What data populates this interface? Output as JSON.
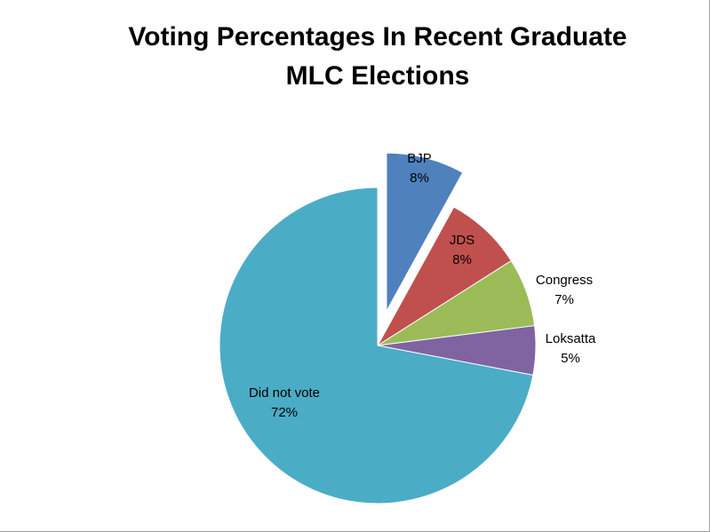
{
  "chart_data": {
    "type": "pie",
    "title": "Voting Percentages In Recent Graduate MLC Elections",
    "slices": [
      {
        "label": "BJP",
        "value": 8,
        "value_label": "8%",
        "color": "#4F81BD",
        "exploded": true
      },
      {
        "label": "JDS",
        "value": 8,
        "value_label": "8%",
        "color": "#C0504D",
        "exploded": false
      },
      {
        "label": "Congress",
        "value": 7,
        "value_label": "7%",
        "color": "#9BBB59",
        "exploded": false
      },
      {
        "label": "Loksatta",
        "value": 5,
        "value_label": "5%",
        "color": "#8064A2",
        "exploded": false
      },
      {
        "label": "Did not vote",
        "value": 72,
        "value_label": "72%",
        "color": "#4BACC6",
        "exploded": false
      }
    ],
    "legend": "none"
  }
}
